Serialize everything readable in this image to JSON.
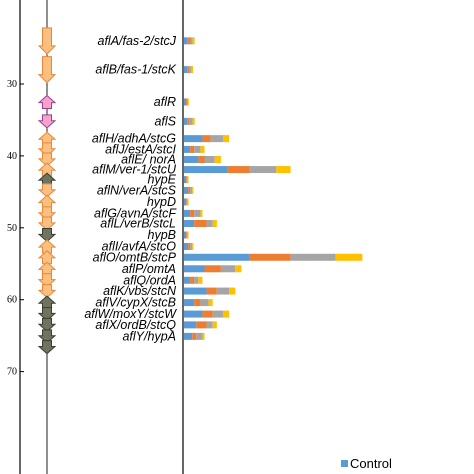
{
  "chart_data": {
    "type": "bar",
    "orientation": "horizontal",
    "stacked": true,
    "genome_axis": {
      "ticks": [
        30,
        40,
        50,
        60,
        70
      ],
      "range": [
        20.5,
        72.6
      ]
    },
    "genes": [
      {
        "label": "aflA/fas-2/stcJ",
        "pos": 24.0,
        "dir": "down",
        "kind": "orange"
      },
      {
        "label": "aflB/fas-1/stcK",
        "pos": 28.0,
        "dir": "down",
        "kind": "orange"
      },
      {
        "label": "aflR",
        "pos": 32.5,
        "dir": "up",
        "kind": "pink"
      },
      {
        "label": "aflS",
        "pos": 35.2,
        "dir": "down",
        "kind": "pink"
      },
      {
        "label": "aflH/adhA/stcG",
        "pos": 37.6,
        "dir": "up",
        "kind": "orange"
      },
      {
        "label": "aflJ/estA/stcI",
        "pos": 39.1,
        "dir": "down",
        "kind": "orange"
      },
      {
        "label": "aflE/ norA",
        "pos": 40.5,
        "dir": "down",
        "kind": "orange"
      },
      {
        "label": "aflM/ver-1/stcU",
        "pos": 41.9,
        "dir": "up",
        "kind": "orange"
      },
      {
        "label": "hypE",
        "pos": 43.3,
        "dir": "up",
        "kind": "gray"
      },
      {
        "label": "aflN/verA/stcS",
        "pos": 44.8,
        "dir": "down",
        "kind": "orange"
      },
      {
        "label": "hypD",
        "pos": 46.4,
        "dir": "up",
        "kind": "orange"
      },
      {
        "label": "aflG/avnA/stcF",
        "pos": 48.0,
        "dir": "down",
        "kind": "orange"
      },
      {
        "label": "aflL/verB/stcL",
        "pos": 49.4,
        "dir": "down",
        "kind": "orange"
      },
      {
        "label": "hypB",
        "pos": 51.0,
        "dir": "down",
        "kind": "gray"
      },
      {
        "label": "aflI/avfA/stcO",
        "pos": 52.6,
        "dir": "up",
        "kind": "orange"
      },
      {
        "label": "aflO/omtB/stcP",
        "pos": 54.1,
        "dir": "up",
        "kind": "orange"
      },
      {
        "label": "aflP/omtA",
        "pos": 55.7,
        "dir": "up",
        "kind": "orange"
      },
      {
        "label": "aflQ/ordA",
        "pos": 57.3,
        "dir": "down",
        "kind": "orange"
      },
      {
        "label": "aflK/vbs/stcN",
        "pos": 58.8,
        "dir": "down",
        "kind": "orange"
      },
      {
        "label": "aflV/cypX/stcB",
        "pos": 60.4,
        "dir": "up",
        "kind": "gray"
      },
      {
        "label": "aflW/moxY/stcW",
        "pos": 62.0,
        "dir": "down",
        "kind": "gray"
      },
      {
        "label": "aflX/ordB/stcQ",
        "pos": 63.5,
        "dir": "down",
        "kind": "gray"
      },
      {
        "label": "aflY/hypA",
        "pos": 65.1,
        "dir": "down",
        "kind": "gray"
      }
    ],
    "series": [
      {
        "color": "#5b9bd5",
        "values": [
          0.8,
          0.8,
          0.5,
          0.8,
          4.5,
          1.5,
          3.5,
          10.5,
          0.5,
          1.0,
          0.5,
          1.5,
          2.5,
          0.5,
          1.0,
          16.0,
          5.0,
          1.5,
          5.5,
          2.5,
          4.5,
          3.0,
          2.0
        ]
      },
      {
        "color": "#ed7d31",
        "values": [
          0.8,
          0.5,
          0.3,
          0.5,
          2.0,
          1.0,
          1.5,
          5.5,
          0.2,
          0.5,
          0.2,
          1.0,
          3.0,
          0.2,
          0.5,
          10.0,
          4.0,
          1.0,
          2.5,
          1.5,
          2.5,
          2.5,
          1.0
        ]
      },
      {
        "color": "#a5a5a5",
        "values": [
          0.5,
          0.5,
          0.2,
          0.8,
          3.0,
          1.5,
          2.5,
          6.5,
          0.2,
          0.5,
          0.2,
          1.5,
          1.5,
          0.2,
          0.5,
          11.0,
          3.5,
          1.0,
          3.0,
          2.0,
          2.5,
          1.5,
          1.5
        ]
      },
      {
        "color": "#ffc000",
        "values": [
          0.5,
          0.4,
          0.2,
          0.5,
          1.5,
          1.0,
          1.5,
          3.5,
          0.2,
          0.3,
          0.2,
          0.5,
          1.0,
          0.2,
          0.3,
          6.5,
          1.5,
          1.0,
          1.5,
          1.0,
          1.5,
          1.0,
          0.5
        ]
      }
    ],
    "legend": {
      "entries": [
        {
          "name": "Control",
          "color": "#5b9bd5"
        }
      ],
      "placement": "bottom-right"
    },
    "colors": {
      "orange_fill": "#fbbf80",
      "orange_stroke": "#e8873a",
      "pink_fill": "#f5a3c8",
      "pink_stroke": "#9c3e9a",
      "gray_fill": "#6e7460",
      "gray_stroke": "#3a3f31"
    }
  }
}
